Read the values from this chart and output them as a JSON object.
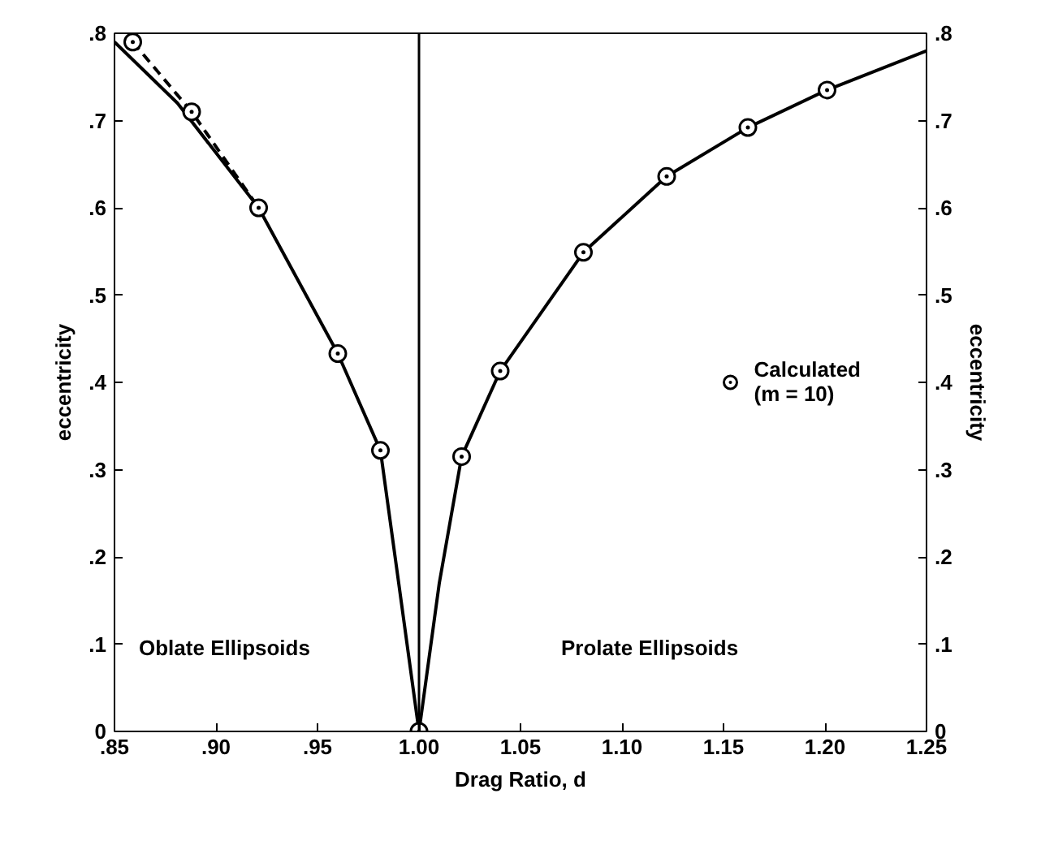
{
  "chart_data": {
    "type": "line",
    "xlabel": "Drag Ratio, d",
    "ylabel": "eccentricity",
    "y2label": "eccentricity",
    "series": [
      {
        "color": "#000000",
        "line_style": "solid",
        "marker": "none",
        "x": [
          0.85,
          0.881,
          0.921,
          0.96,
          0.981,
          0.99,
          1.0,
          1.01,
          1.021,
          1.04,
          1.081,
          1.122,
          1.162,
          1.201,
          1.25
        ],
        "values": [
          0.79,
          0.72,
          0.6,
          0.433,
          0.322,
          0.17,
          0.0,
          0.17,
          0.315,
          0.413,
          0.549,
          0.636,
          0.692,
          0.735,
          0.78
        ]
      },
      {
        "type": "line",
        "color": "#000000",
        "line_style": "dashed",
        "marker": "none",
        "x": [
          0.859,
          0.888,
          0.921
        ],
        "values": [
          0.79,
          0.71,
          0.6
        ]
      },
      {
        "type": "scatter",
        "name": "Calculated\n(m = 10)",
        "color": "#000000",
        "marker": "circle",
        "x": [
          0.859,
          0.888,
          0.921,
          0.96,
          0.981,
          1.0,
          1.021,
          1.04,
          1.081,
          1.122,
          1.162,
          1.201
        ],
        "values": [
          0.79,
          0.71,
          0.6,
          0.433,
          0.322,
          0.0,
          0.315,
          0.413,
          0.549,
          0.636,
          0.692,
          0.735
        ]
      }
    ],
    "xlim": [
      0.85,
      1.25
    ],
    "xticks": [
      {
        "value": 0.85,
        "label": ".85"
      },
      {
        "value": 0.9,
        "label": ".90"
      },
      {
        "value": 0.95,
        "label": ".95"
      },
      {
        "value": 1.0,
        "label": "1.00"
      },
      {
        "value": 1.05,
        "label": "1.05"
      },
      {
        "value": 1.1,
        "label": "1.10"
      },
      {
        "value": 1.15,
        "label": "1.15"
      },
      {
        "value": 1.2,
        "label": "1.20"
      },
      {
        "value": 1.25,
        "label": "1.25"
      }
    ],
    "ylim": [
      0,
      0.8
    ],
    "yticks": [
      0,
      {
        "value": 0.1,
        "label": ".1"
      },
      {
        "value": 0.2,
        "label": ".2"
      },
      {
        "value": 0.3,
        "label": ".3"
      },
      {
        "value": 0.4,
        "label": ".4"
      },
      {
        "value": 0.5,
        "label": ".5"
      },
      {
        "value": 0.6,
        "label": ".6"
      },
      {
        "value": 0.7,
        "label": ".7"
      },
      {
        "value": 0.8,
        "label": ".8"
      }
    ],
    "y2lim": [
      0,
      0.8
    ],
    "y2ticks": [
      0,
      {
        "value": 0.1,
        "label": ".1"
      },
      {
        "value": 0.2,
        "label": ".2"
      },
      {
        "value": 0.3,
        "label": ".3"
      },
      {
        "value": 0.4,
        "label": ".4"
      },
      {
        "value": 0.5,
        "label": ".5"
      },
      {
        "value": 0.6,
        "label": ".6"
      },
      {
        "value": 0.7,
        "label": ".7"
      },
      {
        "value": 0.8,
        "label": ".8"
      }
    ],
    "ref_lines": [
      {
        "axis": "x",
        "value": 1.0,
        "color": "#000000"
      }
    ],
    "annotations": [
      "Oblate Ellipsoids",
      "Prolate Ellipsoids"
    ],
    "legend": "right",
    "grid": false
  }
}
